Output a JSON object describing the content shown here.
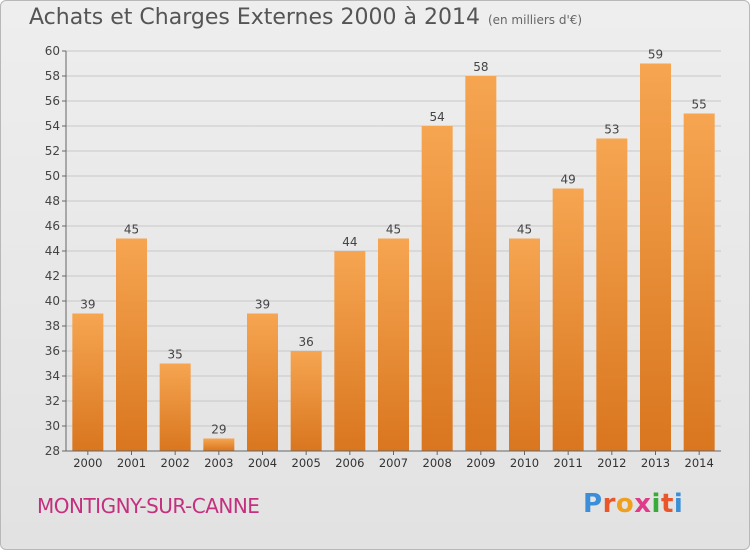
{
  "chart_data": {
    "type": "bar",
    "title": "Achats et Charges Externes 2000 à 2014",
    "subtitle": "(en milliers d'€)",
    "categories": [
      "2000",
      "2001",
      "2002",
      "2003",
      "2004",
      "2005",
      "2006",
      "2007",
      "2008",
      "2009",
      "2010",
      "2011",
      "2012",
      "2013",
      "2014"
    ],
    "values": [
      39,
      45,
      35,
      29,
      39,
      36,
      44,
      45,
      54,
      58,
      45,
      49,
      53,
      59,
      55
    ],
    "ylim": [
      28,
      60
    ],
    "yticks": [
      28,
      30,
      32,
      34,
      36,
      38,
      40,
      42,
      44,
      46,
      48,
      50,
      52,
      54,
      56,
      58,
      60
    ],
    "grid": true,
    "xlabel": "",
    "ylabel": "",
    "colors": {
      "bar_top": "#f6a551",
      "bar_bottom": "#d9761f",
      "grid": "#c8c8c8"
    }
  },
  "footer": {
    "commune": "MONTIGNY-SUR-CANNE",
    "logo_text": "Proxiti",
    "logo_colors": [
      "#3a8fd8",
      "#e8562a",
      "#f0a020",
      "#e03a8a",
      "#3aaa3a",
      "#e8562a",
      "#3a8fd8"
    ]
  }
}
